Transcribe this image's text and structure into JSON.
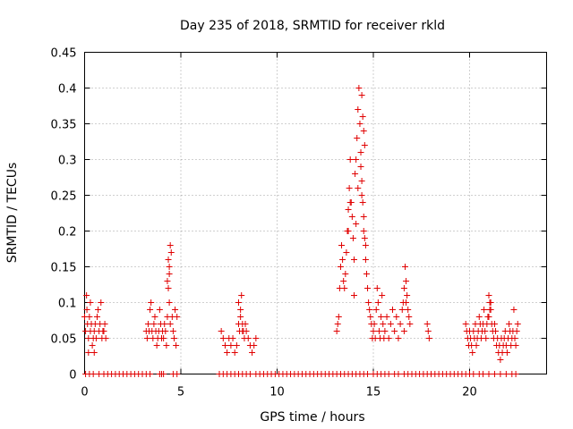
{
  "chart_data": {
    "type": "scatter",
    "title": "Day 235 of 2018, SRMTID for receiver rkld",
    "xlabel": "GPS time / hours",
    "ylabel": "SRMTID / TECUs",
    "xlim": [
      0,
      24
    ],
    "ylim": [
      0,
      0.45
    ],
    "xticks": [
      0,
      5,
      10,
      15,
      20
    ],
    "yticks": [
      0,
      0.05,
      0.1,
      0.15,
      0.2,
      0.25,
      0.3,
      0.35,
      0.4,
      0.45
    ],
    "ytick_labels": [
      "0",
      "0.05",
      "0.1",
      "0.15",
      "0.2",
      "0.25",
      "0.3",
      "0.35",
      "0.4",
      "0.45"
    ],
    "marker": "+",
    "color": "#e00000",
    "series": [
      {
        "name": "SRMTID",
        "x": [
          0.0,
          0.05,
          0.1,
          0.12,
          0.15,
          0.2,
          0.25,
          0.3,
          0.35,
          0.4,
          0.45,
          0.5,
          0.55,
          0.6,
          0.65,
          0.7,
          0.75,
          0.8,
          0.85,
          0.9,
          0.95,
          1.0,
          1.05,
          1.1,
          0.2,
          0.3,
          0.5,
          3.2,
          3.25,
          3.3,
          3.35,
          3.4,
          3.45,
          3.5,
          3.55,
          3.6,
          3.65,
          3.7,
          3.75,
          3.8,
          3.85,
          3.9,
          3.95,
          4.0,
          4.05,
          4.1,
          4.15,
          4.2,
          4.25,
          4.3,
          4.35,
          4.4,
          4.45,
          4.5,
          4.55,
          4.6,
          4.65,
          4.7,
          4.75,
          4.8,
          4.3,
          4.35,
          4.4,
          4.45,
          4.4,
          7.1,
          7.2,
          7.3,
          7.4,
          7.5,
          7.6,
          7.7,
          7.8,
          7.9,
          8.0,
          8.05,
          8.1,
          8.15,
          8.2,
          8.25,
          8.3,
          8.35,
          8.4,
          8.5,
          8.6,
          8.7,
          8.8,
          8.9,
          8.0,
          8.1,
          8.2,
          13.1,
          13.15,
          13.2,
          13.25,
          13.3,
          13.35,
          13.4,
          13.45,
          13.5,
          13.55,
          13.6,
          13.65,
          13.7,
          13.75,
          13.8,
          13.85,
          13.9,
          13.95,
          14.0,
          14.05,
          14.1,
          14.15,
          14.2,
          14.25,
          14.3,
          14.35,
          14.4,
          14.45,
          14.5,
          14.55,
          14.6,
          14.65,
          14.7,
          14.75,
          14.8,
          14.85,
          14.9,
          14.95,
          15.0,
          14.4,
          14.45,
          14.5,
          14.55,
          14.35,
          14.4,
          14.5,
          14.6,
          13.7,
          13.8,
          14.1,
          14.2,
          14.0,
          15.05,
          15.1,
          15.15,
          15.2,
          15.25,
          15.3,
          15.35,
          15.4,
          15.45,
          15.5,
          15.55,
          15.6,
          15.7,
          15.8,
          15.9,
          16.0,
          16.1,
          16.2,
          16.3,
          16.4,
          16.5,
          16.55,
          16.6,
          16.65,
          16.7,
          16.75,
          16.8,
          16.85,
          16.9,
          16.6,
          16.7,
          17.8,
          17.85,
          17.9,
          19.8,
          19.85,
          19.9,
          19.95,
          20.0,
          20.05,
          20.1,
          20.15,
          20.2,
          20.25,
          20.3,
          20.35,
          20.4,
          20.45,
          20.5,
          20.55,
          20.6,
          20.65,
          20.7,
          20.75,
          20.8,
          20.85,
          20.9,
          20.95,
          21.0,
          21.05,
          21.1,
          21.15,
          21.2,
          21.25,
          21.3,
          21.35,
          21.4,
          21.45,
          21.5,
          21.55,
          21.6,
          21.65,
          21.7,
          21.75,
          21.8,
          21.85,
          21.9,
          21.95,
          22.0,
          22.05,
          22.1,
          22.15,
          22.2,
          22.25,
          22.3,
          22.35,
          22.4,
          22.45,
          22.5,
          21.0,
          21.05,
          21.1,
          0.05,
          0.25,
          0.45,
          0.75,
          1.0,
          1.2,
          1.4,
          1.6,
          1.8,
          2.0,
          2.2,
          2.4,
          2.6,
          2.8,
          3.0,
          3.2,
          3.4,
          3.9,
          4.0,
          4.1,
          4.6,
          4.8,
          7.0,
          7.2,
          7.4,
          7.6,
          7.8,
          8.0,
          8.2,
          8.4,
          8.6,
          8.9,
          9.1,
          9.3,
          9.5,
          9.7,
          9.9,
          10.1,
          10.3,
          10.5,
          10.7,
          10.9,
          11.1,
          11.3,
          11.5,
          11.7,
          11.9,
          12.1,
          12.3,
          12.5,
          12.7,
          12.9,
          13.1,
          13.3,
          13.5,
          13.7,
          13.9,
          14.1,
          14.3,
          14.5,
          14.7,
          15.0,
          15.2,
          15.4,
          15.6,
          15.8,
          16.1,
          16.3,
          16.6,
          16.8,
          17.0,
          17.2,
          17.4,
          17.6,
          17.8,
          18.0,
          18.2,
          18.4,
          18.6,
          18.8,
          19.0,
          19.2,
          19.4,
          19.6,
          19.8,
          20.0,
          20.2,
          20.5,
          20.7,
          21.0,
          21.3,
          21.6,
          21.9,
          22.2,
          22.4
        ],
        "y": [
          0.08,
          0.06,
          0.11,
          0.09,
          0.07,
          0.05,
          0.08,
          0.06,
          0.07,
          0.04,
          0.05,
          0.06,
          0.07,
          0.05,
          0.08,
          0.09,
          0.06,
          0.07,
          0.1,
          0.05,
          0.06,
          0.06,
          0.07,
          0.05,
          0.03,
          0.1,
          0.03,
          0.06,
          0.05,
          0.07,
          0.06,
          0.09,
          0.1,
          0.06,
          0.05,
          0.07,
          0.08,
          0.06,
          0.04,
          0.05,
          0.06,
          0.09,
          0.07,
          0.05,
          0.06,
          0.05,
          0.07,
          0.06,
          0.04,
          0.08,
          0.12,
          0.15,
          0.18,
          0.17,
          0.08,
          0.06,
          0.05,
          0.09,
          0.04,
          0.08,
          0.13,
          0.16,
          0.1,
          0.07,
          0.14,
          0.06,
          0.05,
          0.04,
          0.03,
          0.05,
          0.04,
          0.05,
          0.03,
          0.04,
          0.07,
          0.06,
          0.08,
          0.11,
          0.07,
          0.06,
          0.05,
          0.07,
          0.06,
          0.05,
          0.04,
          0.03,
          0.04,
          0.05,
          0.1,
          0.09,
          0.06,
          0.06,
          0.07,
          0.08,
          0.12,
          0.15,
          0.18,
          0.16,
          0.13,
          0.12,
          0.14,
          0.17,
          0.2,
          0.23,
          0.26,
          0.3,
          0.24,
          0.22,
          0.19,
          0.16,
          0.28,
          0.3,
          0.33,
          0.37,
          0.4,
          0.35,
          0.31,
          0.27,
          0.24,
          0.22,
          0.19,
          0.16,
          0.14,
          0.12,
          0.1,
          0.09,
          0.08,
          0.07,
          0.05,
          0.06,
          0.39,
          0.36,
          0.34,
          0.32,
          0.29,
          0.25,
          0.2,
          0.18,
          0.2,
          0.24,
          0.21,
          0.26,
          0.11,
          0.07,
          0.05,
          0.09,
          0.12,
          0.1,
          0.06,
          0.05,
          0.08,
          0.11,
          0.07,
          0.05,
          0.06,
          0.08,
          0.05,
          0.07,
          0.09,
          0.06,
          0.08,
          0.05,
          0.07,
          0.09,
          0.1,
          0.12,
          0.15,
          0.13,
          0.11,
          0.09,
          0.08,
          0.07,
          0.06,
          0.1,
          0.07,
          0.06,
          0.05,
          0.07,
          0.06,
          0.05,
          0.04,
          0.06,
          0.05,
          0.04,
          0.03,
          0.06,
          0.05,
          0.07,
          0.04,
          0.05,
          0.06,
          0.08,
          0.07,
          0.05,
          0.06,
          0.07,
          0.09,
          0.06,
          0.05,
          0.07,
          0.08,
          0.08,
          0.09,
          0.1,
          0.07,
          0.06,
          0.05,
          0.07,
          0.06,
          0.04,
          0.05,
          0.03,
          0.04,
          0.02,
          0.05,
          0.03,
          0.04,
          0.05,
          0.06,
          0.04,
          0.03,
          0.05,
          0.07,
          0.06,
          0.04,
          0.05,
          0.06,
          0.09,
          0.05,
          0.04,
          0.06,
          0.07,
          0.11,
          0.1,
          0.09,
          0,
          0,
          0,
          0,
          0,
          0,
          0,
          0,
          0,
          0,
          0,
          0,
          0,
          0,
          0,
          0,
          0,
          0,
          0,
          0,
          0,
          0,
          0,
          0,
          0,
          0,
          0,
          0,
          0,
          0,
          0,
          0,
          0,
          0,
          0,
          0,
          0,
          0,
          0,
          0,
          0,
          0,
          0,
          0,
          0,
          0,
          0,
          0,
          0,
          0,
          0,
          0,
          0,
          0,
          0,
          0,
          0,
          0,
          0,
          0,
          0,
          0,
          0,
          0,
          0,
          0,
          0,
          0,
          0,
          0,
          0,
          0,
          0,
          0,
          0,
          0,
          0,
          0,
          0,
          0,
          0,
          0,
          0,
          0,
          0,
          0,
          0,
          0,
          0,
          0,
          0,
          0,
          0,
          0,
          0
        ]
      }
    ]
  }
}
